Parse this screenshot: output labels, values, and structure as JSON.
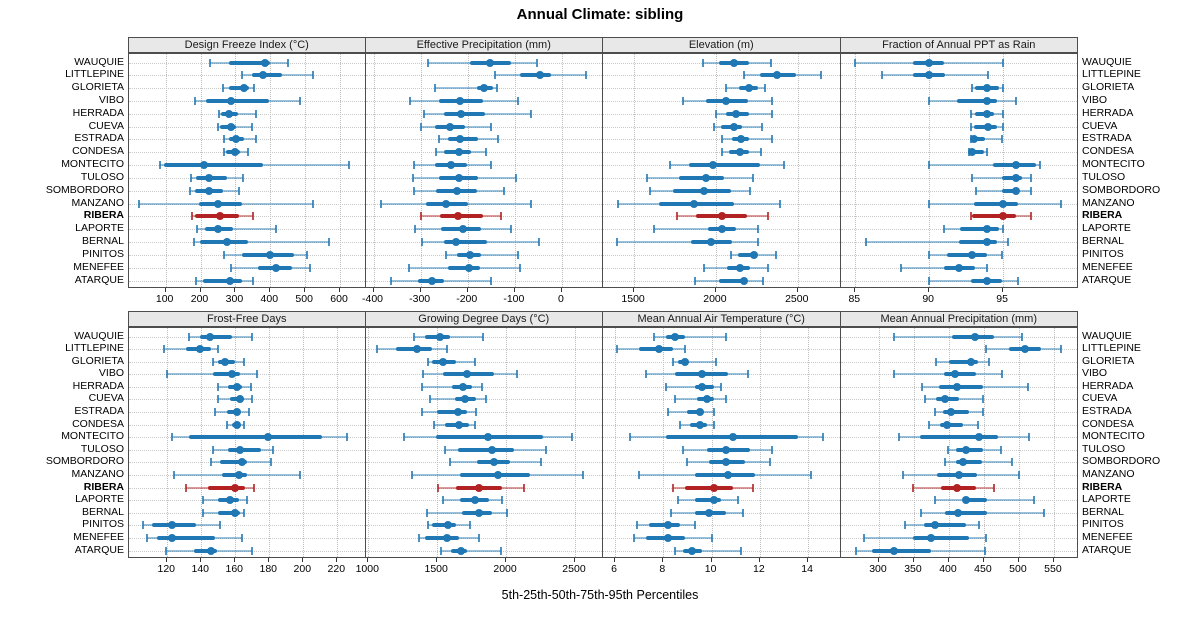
{
  "title": "Annual Climate: sibling",
  "xlabel": "5th-25th-50th-75th-95th Percentiles",
  "colors": {
    "series": "#1f77b4",
    "series_light": "rgba(31,119,180,0.45)",
    "series_cap": "rgba(31,119,180,0.8)",
    "highlight": "#b22222",
    "highlight_light": "rgba(178,34,34,0.45)",
    "highlight_cap": "rgba(178,34,34,0.8)",
    "header_bg": "#e8e8e8",
    "grid": "#bdbdbd"
  },
  "chart_data": {
    "type": "scatter",
    "subtype": "percentile-dotplot",
    "title": "Annual Climate: sibling",
    "xlabel": "5th-25th-50th-75th-95th Percentiles",
    "legend_position": "none",
    "grid": true,
    "percentile_labels": [
      "5th",
      "25th",
      "50th",
      "75th",
      "95th"
    ],
    "highlight_site": "RIBERA",
    "sites": [
      "WAUQUIE",
      "LITTLEPINE",
      "GLORIETA",
      "VIBO",
      "HERRADA",
      "CUEVA",
      "ESTRADA",
      "CONDESA",
      "MONTECITO",
      "TULOSO",
      "SOMBORDORO",
      "MANZANO",
      "RIBERA",
      "LAPORTE",
      "BERNAL",
      "PINITOS",
      "MENEFEE",
      "ATARQUE"
    ],
    "panels": [
      {
        "title": "Design Freeze Index (°C)",
        "grid_row": 0,
        "grid_col": 0,
        "ticks": [
          100,
          200,
          300,
          400,
          500,
          600
        ],
        "domain": [
          -5,
          670
        ],
        "values": [
          [
            227,
            283,
            386,
            400,
            451
          ],
          [
            319,
            348,
            379,
            434,
            521
          ],
          [
            263,
            283,
            324,
            340,
            353
          ],
          [
            185,
            217,
            288,
            396,
            486
          ],
          [
            252,
            259,
            283,
            307,
            358
          ],
          [
            251,
            256,
            286,
            302,
            348
          ],
          [
            268,
            283,
            302,
            326,
            360
          ],
          [
            268,
            273,
            300,
            312,
            336
          ],
          [
            84,
            95,
            209,
            379,
            627
          ],
          [
            172,
            188,
            225,
            275,
            323
          ],
          [
            169,
            184,
            225,
            265,
            310
          ],
          [
            25,
            195,
            251,
            318,
            523
          ],
          [
            177,
            184,
            256,
            309,
            350
          ],
          [
            190,
            212,
            251,
            294,
            417
          ],
          [
            181,
            198,
            275,
            337,
            568
          ],
          [
            267,
            318,
            400,
            467,
            504
          ],
          [
            287,
            366,
            417,
            462,
            515
          ],
          [
            187,
            208,
            285,
            318,
            350
          ]
        ]
      },
      {
        "title": "Effective Precipitation (mm)",
        "grid_row": 0,
        "grid_col": 1,
        "ticks": [
          -400,
          -300,
          -200,
          -100,
          0
        ],
        "domain": [
          -417,
          85
        ],
        "values": [
          [
            -285,
            -195,
            -153,
            -108,
            -54
          ],
          [
            -143,
            -88,
            -47,
            -24,
            50
          ],
          [
            -269,
            -181,
            -165,
            -146,
            -137
          ],
          [
            -322,
            -262,
            -216,
            -167,
            -94
          ],
          [
            -292,
            -251,
            -215,
            -164,
            -65
          ],
          [
            -299,
            -269,
            -237,
            -206,
            -151
          ],
          [
            -261,
            -242,
            -217,
            -178,
            -136
          ],
          [
            -267,
            -251,
            -219,
            -192,
            -162
          ],
          [
            -315,
            -269,
            -235,
            -202,
            -150
          ],
          [
            -317,
            -261,
            -219,
            -179,
            -98
          ],
          [
            -315,
            -267,
            -222,
            -181,
            -122
          ],
          [
            -385,
            -289,
            -247,
            -199,
            -65
          ],
          [
            -299,
            -258,
            -221,
            -167,
            -129
          ],
          [
            -311,
            -256,
            -209,
            -171,
            -108
          ],
          [
            -297,
            -251,
            -225,
            -160,
            -49
          ],
          [
            -247,
            -222,
            -195,
            -171,
            -93
          ],
          [
            -324,
            -242,
            -197,
            -174,
            -88
          ],
          [
            -363,
            -306,
            -276,
            -250,
            -150
          ]
        ]
      },
      {
        "title": "Elevation (m)",
        "grid_row": 0,
        "grid_col": 2,
        "ticks": [
          1500,
          2000,
          2500
        ],
        "domain": [
          1310,
          2755
        ],
        "values": [
          [
            1920,
            2020,
            2110,
            2200,
            2335
          ],
          [
            2170,
            2270,
            2375,
            2490,
            2645
          ],
          [
            2060,
            2140,
            2205,
            2260,
            2300
          ],
          [
            1800,
            1940,
            2060,
            2195,
            2345
          ],
          [
            2000,
            2060,
            2120,
            2205,
            2340
          ],
          [
            1990,
            2030,
            2110,
            2160,
            2280
          ],
          [
            2040,
            2100,
            2155,
            2205,
            2340
          ],
          [
            2040,
            2080,
            2150,
            2200,
            2275
          ],
          [
            1720,
            1835,
            1985,
            2270,
            2415
          ],
          [
            1580,
            1775,
            1940,
            2050,
            2225
          ],
          [
            1600,
            1735,
            1925,
            2090,
            2210
          ],
          [
            1400,
            1655,
            1865,
            2110,
            2390
          ],
          [
            1760,
            1880,
            2040,
            2190,
            2320
          ],
          [
            1620,
            1950,
            2040,
            2120,
            2255
          ],
          [
            1395,
            1845,
            1970,
            2100,
            2255
          ],
          [
            2090,
            2135,
            2230,
            2250,
            2370
          ],
          [
            1925,
            2070,
            2150,
            2210,
            2320
          ],
          [
            1875,
            2020,
            2170,
            2190,
            2285
          ]
        ]
      },
      {
        "title": "Fraction of Annual PPT as Rain",
        "grid_row": 0,
        "grid_col": 3,
        "ticks": [
          85,
          90,
          95
        ],
        "domain": [
          84,
          100
        ],
        "values": [
          [
            85.0,
            88.9,
            90.0,
            91.0,
            95.0
          ],
          [
            86.8,
            88.9,
            90.0,
            91.1,
            94.0
          ],
          [
            92.9,
            93.1,
            93.9,
            94.7,
            95.0
          ],
          [
            90.0,
            91.9,
            93.9,
            94.6,
            95.9
          ],
          [
            92.8,
            93.1,
            93.9,
            94.4,
            95.0
          ],
          [
            92.8,
            93.0,
            94.0,
            94.6,
            95.0
          ],
          [
            92.8,
            92.9,
            93.0,
            93.8,
            94.9
          ],
          [
            92.7,
            92.8,
            92.9,
            93.7,
            93.9
          ],
          [
            90.0,
            94.3,
            95.9,
            97.2,
            97.5
          ],
          [
            92.9,
            94.9,
            95.9,
            96.3,
            96.9
          ],
          [
            93.2,
            94.9,
            95.9,
            96.1,
            96.9
          ],
          [
            90.0,
            93.0,
            95.0,
            96.0,
            98.9
          ],
          [
            92.8,
            92.9,
            95.0,
            95.9,
            96.9
          ],
          [
            91.0,
            92.1,
            93.9,
            94.7,
            95.0
          ],
          [
            85.7,
            92.0,
            93.9,
            94.6,
            95.3
          ],
          [
            90.0,
            91.2,
            92.9,
            93.9,
            94.9
          ],
          [
            88.1,
            91.0,
            92.0,
            93.1,
            93.9
          ],
          [
            90.0,
            92.8,
            93.9,
            94.9,
            96.0
          ]
        ]
      },
      {
        "title": "Frost-Free Days",
        "grid_row": 1,
        "grid_col": 0,
        "ticks": [
          120,
          140,
          160,
          180,
          200,
          220
        ],
        "domain": [
          97.5,
          236
        ],
        "values": [
          [
            133,
            139,
            145,
            158,
            170
          ],
          [
            118,
            131,
            139,
            146,
            150
          ],
          [
            147,
            150,
            154,
            160,
            165
          ],
          [
            120,
            147,
            158,
            163,
            173
          ],
          [
            150,
            156,
            161,
            164,
            169
          ],
          [
            150,
            157,
            163,
            165,
            170
          ],
          [
            148,
            155,
            161,
            163,
            168
          ],
          [
            155,
            158,
            161,
            163,
            165
          ],
          [
            123,
            133,
            179,
            211,
            226
          ],
          [
            147,
            156,
            163,
            175,
            182
          ],
          [
            146,
            151,
            164,
            167,
            181
          ],
          [
            124,
            152,
            162,
            167,
            198
          ],
          [
            131,
            144,
            160,
            166,
            171
          ],
          [
            141,
            150,
            157,
            162,
            167
          ],
          [
            141,
            150,
            160,
            163,
            165
          ],
          [
            106,
            111,
            123,
            137,
            151
          ],
          [
            108,
            114,
            123,
            148,
            164
          ],
          [
            119,
            136,
            146,
            149,
            170
          ]
        ]
      },
      {
        "title": "Growing Degree Days (°C)",
        "grid_row": 1,
        "grid_col": 1,
        "ticks": [
          1000,
          1500,
          2000,
          2500
        ],
        "domain": [
          980,
          2696
        ],
        "values": [
          [
            1335,
            1415,
            1520,
            1595,
            1830
          ],
          [
            1065,
            1200,
            1355,
            1460,
            1570
          ],
          [
            1435,
            1465,
            1540,
            1635,
            1775
          ],
          [
            1395,
            1540,
            1720,
            1915,
            2080
          ],
          [
            1390,
            1610,
            1685,
            1755,
            1825
          ],
          [
            1450,
            1630,
            1705,
            1785,
            1855
          ],
          [
            1390,
            1500,
            1650,
            1715,
            1780
          ],
          [
            1475,
            1560,
            1655,
            1730,
            1775
          ],
          [
            1260,
            1490,
            1870,
            2270,
            2475
          ],
          [
            1555,
            1650,
            1895,
            2060,
            2290
          ],
          [
            1590,
            1790,
            1910,
            2030,
            2250
          ],
          [
            1320,
            1665,
            1940,
            2175,
            2555
          ],
          [
            1505,
            1635,
            1800,
            1970,
            2130
          ],
          [
            1545,
            1665,
            1775,
            1875,
            1970
          ],
          [
            1425,
            1680,
            1805,
            1895,
            2010
          ],
          [
            1430,
            1465,
            1580,
            1640,
            1735
          ],
          [
            1370,
            1415,
            1570,
            1655,
            1800
          ],
          [
            1525,
            1600,
            1675,
            1720,
            1965
          ]
        ]
      },
      {
        "title": "Mean Annual Air Temperature (°C)",
        "grid_row": 1,
        "grid_col": 2,
        "ticks": [
          6,
          8,
          10,
          12,
          14
        ],
        "domain": [
          5.5,
          15.3
        ],
        "values": [
          [
            7.6,
            8.1,
            8.5,
            8.9,
            10.6
          ],
          [
            6.1,
            7.0,
            7.8,
            8.4,
            8.9
          ],
          [
            8.4,
            8.6,
            8.9,
            9.0,
            10.2
          ],
          [
            7.3,
            8.5,
            9.6,
            10.7,
            11.5
          ],
          [
            8.1,
            9.3,
            9.6,
            10.1,
            10.4
          ],
          [
            8.5,
            9.4,
            9.8,
            10.1,
            10.6
          ],
          [
            8.2,
            9.0,
            9.5,
            9.7,
            10.1
          ],
          [
            8.7,
            9.1,
            9.5,
            9.8,
            10.1
          ],
          [
            6.6,
            8.1,
            10.9,
            13.6,
            14.6
          ],
          [
            8.8,
            9.8,
            10.6,
            11.6,
            12.5
          ],
          [
            9.0,
            9.9,
            10.6,
            11.4,
            12.4
          ],
          [
            7.0,
            9.3,
            10.7,
            11.8,
            14.1
          ],
          [
            8.4,
            8.9,
            10.1,
            10.9,
            11.7
          ],
          [
            8.6,
            9.3,
            10.1,
            10.4,
            11.1
          ],
          [
            8.3,
            9.3,
            9.9,
            10.6,
            11.3
          ],
          [
            6.9,
            7.4,
            8.2,
            8.7,
            9.3
          ],
          [
            6.8,
            7.3,
            8.2,
            8.9,
            10.0
          ],
          [
            8.5,
            8.8,
            9.2,
            9.6,
            11.2
          ]
        ]
      },
      {
        "title": "Mean Annual Precipitation (mm)",
        "grid_row": 1,
        "grid_col": 3,
        "ticks": [
          300,
          350,
          400,
          450,
          500,
          550
        ],
        "domain": [
          245,
          583
        ],
        "values": [
          [
            321,
            405,
            437,
            465,
            504
          ],
          [
            453,
            486,
            508,
            532,
            560
          ],
          [
            381,
            400,
            431,
            442,
            457
          ],
          [
            322,
            393,
            408,
            439,
            476
          ],
          [
            361,
            386,
            412,
            448,
            513
          ],
          [
            366,
            381,
            394,
            415,
            448
          ],
          [
            380,
            392,
            403,
            428,
            448
          ],
          [
            371,
            387,
            397,
            420,
            442
          ],
          [
            329,
            358,
            443,
            470,
            514
          ],
          [
            399,
            410,
            424,
            449,
            474
          ],
          [
            395,
            410,
            420,
            447,
            490
          ],
          [
            335,
            383,
            414,
            440,
            500
          ],
          [
            349,
            388,
            411,
            439,
            465
          ],
          [
            380,
            420,
            425,
            454,
            521
          ],
          [
            360,
            394,
            413,
            454,
            536
          ],
          [
            337,
            364,
            380,
            425,
            443
          ],
          [
            279,
            349,
            375,
            428,
            453
          ],
          [
            267,
            290,
            322,
            375,
            451
          ]
        ]
      }
    ]
  }
}
